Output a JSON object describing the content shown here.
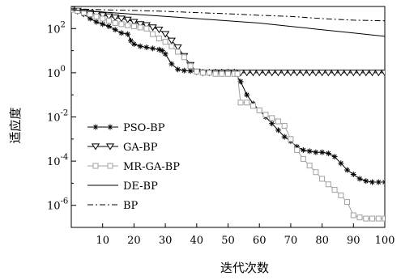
{
  "chart_data": {
    "type": "line",
    "xlabel": "迭代次数",
    "ylabel": "适应度",
    "xlim": [
      0,
      100
    ],
    "ylim_log10": [
      -7,
      3
    ],
    "y_scale": "log",
    "x_ticks": [
      10,
      20,
      30,
      40,
      50,
      60,
      70,
      80,
      90,
      100
    ],
    "y_ticks": [
      {
        "exp": 2,
        "base": "10",
        "sup": "2"
      },
      {
        "exp": 0,
        "base": "10",
        "sup": "0"
      },
      {
        "exp": -2,
        "base": "10",
        "sup": "-2"
      },
      {
        "exp": -4,
        "base": "10",
        "sup": "-4"
      },
      {
        "exp": -6,
        "base": "10",
        "sup": "-6"
      }
    ],
    "legend_position": "lower-left",
    "grid": false,
    "series": [
      {
        "name": "PSO-BP",
        "marker": "asterisk",
        "line_style": "solid",
        "color": "#000000",
        "x": [
          0,
          2,
          4,
          6,
          8,
          10,
          12,
          14,
          16,
          18,
          19,
          20,
          22,
          24,
          26,
          28,
          29,
          30,
          32,
          34,
          36,
          38,
          40,
          42,
          44,
          46,
          48,
          50,
          52,
          54,
          56,
          58,
          60,
          62,
          64,
          66,
          68,
          70,
          72,
          74,
          76,
          78,
          80,
          82,
          84,
          86,
          88,
          90,
          92,
          94,
          96,
          98,
          100
        ],
        "log10_y": [
          2.85,
          2.78,
          2.65,
          2.45,
          2.3,
          2.2,
          2.1,
          1.95,
          1.8,
          1.75,
          1.45,
          1.3,
          1.2,
          1.15,
          1.1,
          1.05,
          1.0,
          0.85,
          0.4,
          0.15,
          0.1,
          0.08,
          0.05,
          0.05,
          0.05,
          0.05,
          0.05,
          0.05,
          0.05,
          -0.4,
          -1.0,
          -1.4,
          -1.7,
          -2.0,
          -2.3,
          -2.6,
          -2.9,
          -3.1,
          -3.35,
          -3.5,
          -3.55,
          -3.6,
          -3.6,
          -3.65,
          -3.8,
          -4.1,
          -4.4,
          -4.6,
          -4.8,
          -4.9,
          -4.95,
          -4.95,
          -4.95
        ]
      },
      {
        "name": "GA-BP",
        "marker": "triangle-down",
        "line_style": "solid",
        "color": "#000000",
        "x": [
          0,
          2,
          4,
          6,
          8,
          10,
          12,
          14,
          16,
          18,
          20,
          22,
          24,
          26,
          28,
          30,
          32,
          34,
          36,
          38,
          40,
          42,
          44,
          46,
          48,
          50,
          52,
          54,
          56,
          58,
          60,
          62,
          64,
          66,
          68,
          70,
          72,
          74,
          76,
          78,
          80,
          82,
          84,
          86,
          88,
          90,
          92,
          94,
          96,
          98,
          100
        ],
        "log10_y": [
          2.85,
          2.8,
          2.75,
          2.7,
          2.65,
          2.6,
          2.55,
          2.5,
          2.45,
          2.4,
          2.3,
          2.2,
          2.15,
          2.05,
          1.95,
          1.75,
          1.45,
          1.15,
          0.75,
          0.35,
          0.05,
          0.0,
          0.0,
          0.0,
          0.0,
          0.0,
          0.0,
          0.0,
          0.0,
          0.0,
          0.0,
          0.0,
          0.0,
          0.0,
          0.0,
          0.0,
          0.0,
          0.0,
          0.0,
          0.0,
          0.0,
          0.0,
          0.0,
          0.0,
          0.0,
          0.0,
          0.0,
          0.0,
          0.0,
          0.0,
          0.0
        ]
      },
      {
        "name": "MR-GA-BP",
        "marker": "square",
        "line_style": "solid",
        "color": "#a0a0a0",
        "x": [
          0,
          2,
          4,
          6,
          8,
          10,
          12,
          14,
          16,
          18,
          20,
          22,
          24,
          26,
          28,
          30,
          32,
          34,
          36,
          38,
          40,
          42,
          44,
          46,
          48,
          50,
          52,
          53,
          54,
          56,
          58,
          60,
          62,
          64,
          66,
          68,
          70,
          72,
          74,
          76,
          78,
          80,
          82,
          84,
          86,
          88,
          90,
          92,
          94,
          96,
          98,
          100
        ],
        "log10_y": [
          2.85,
          2.8,
          2.72,
          2.65,
          2.55,
          2.45,
          2.35,
          2.25,
          2.2,
          2.15,
          2.1,
          2.05,
          2.0,
          1.75,
          1.55,
          1.4,
          1.2,
          0.95,
          0.7,
          0.3,
          0.05,
          0.0,
          0.0,
          -0.05,
          -0.05,
          -0.05,
          -0.05,
          -0.05,
          -1.35,
          -1.35,
          -1.5,
          -1.7,
          -1.9,
          -2.05,
          -2.2,
          -2.4,
          -3.0,
          -3.5,
          -3.9,
          -4.2,
          -4.5,
          -4.8,
          -5.05,
          -5.3,
          -5.55,
          -5.85,
          -6.45,
          -6.55,
          -6.6,
          -6.6,
          -6.6,
          -6.6
        ]
      },
      {
        "name": "DE-BP",
        "marker": "none",
        "line_style": "solid",
        "color": "#000000",
        "x": [
          0,
          10,
          20,
          30,
          40,
          50,
          60,
          70,
          80,
          90,
          100
        ],
        "log10_y": [
          2.85,
          2.75,
          2.65,
          2.55,
          2.45,
          2.35,
          2.25,
          2.1,
          1.95,
          1.8,
          1.65
        ]
      },
      {
        "name": "BP",
        "marker": "none",
        "line_style": "dashdot",
        "color": "#000000",
        "x": [
          0,
          10,
          20,
          30,
          40,
          50,
          60,
          70,
          80,
          90,
          100
        ],
        "log10_y": [
          2.9,
          2.85,
          2.82,
          2.78,
          2.72,
          2.67,
          2.6,
          2.55,
          2.45,
          2.38,
          2.35
        ]
      }
    ]
  }
}
